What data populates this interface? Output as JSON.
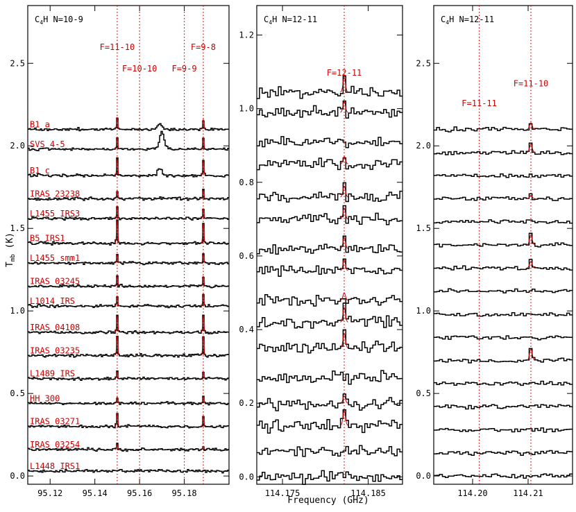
{
  "figure": {
    "ylabel": "T",
    "ylabel_sub": "mb",
    "ylabel_unit": " (K)",
    "xlabel": "Frequency (GHz)"
  },
  "colors": {
    "axis": "#000000",
    "spectra": "#000000",
    "annotation": "#cc0000",
    "fit": "#cc0000"
  },
  "chart_data": [
    {
      "type": "line",
      "title": "C4H N=10-9",
      "title_parts": [
        "C",
        "4",
        "H  N=10-9"
      ],
      "xlim": [
        95.11,
        95.2
      ],
      "ylim": [
        -0.05,
        2.85
      ],
      "x_ticks": [
        "95.12",
        "95.14",
        "95.16",
        "95.18"
      ],
      "x_tick_values": [
        95.12,
        95.14,
        95.16,
        95.18
      ],
      "y_ticks": [
        "0.0",
        "0.5",
        "1.0",
        "1.5",
        "2.0",
        "2.5"
      ],
      "y_tick_values": [
        0.0,
        0.5,
        1.0,
        1.5,
        2.0,
        2.5
      ],
      "transitions": [
        {
          "label": "F=11-10",
          "freq": 95.15,
          "level": 2.58
        },
        {
          "label": "F=10-10",
          "freq": 95.16,
          "level": 2.45
        },
        {
          "label": "F=9-9",
          "freq": 95.18,
          "level": 2.45
        },
        {
          "label": "F=9-8",
          "freq": 95.1885,
          "level": 2.58
        }
      ],
      "series": [
        {
          "name": "B1 a",
          "baseline": 2.1,
          "lines": [
            {
              "x": 95.15,
              "a": 0.07
            },
            {
              "x": 95.169,
              "a": 0.04,
              "broad": true
            },
            {
              "x": 95.1885,
              "a": 0.06
            }
          ]
        },
        {
          "name": "SVS 4-5",
          "baseline": 1.98,
          "lines": [
            {
              "x": 95.15,
              "a": 0.07
            },
            {
              "x": 95.17,
              "a": 0.11,
              "broad": true
            },
            {
              "x": 95.1885,
              "a": 0.07
            }
          ]
        },
        {
          "name": "B1 c",
          "baseline": 1.82,
          "lines": [
            {
              "x": 95.15,
              "a": 0.1
            },
            {
              "x": 95.169,
              "a": 0.04,
              "broad": true
            },
            {
              "x": 95.1885,
              "a": 0.09
            }
          ]
        },
        {
          "name": "IRAS 23238",
          "baseline": 1.68,
          "lines": [
            {
              "x": 95.15,
              "a": 0.05
            },
            {
              "x": 95.1885,
              "a": 0.05
            }
          ]
        },
        {
          "name": "L1455 IRS3",
          "baseline": 1.56,
          "lines": [
            {
              "x": 95.15,
              "a": 0.07
            },
            {
              "x": 95.1885,
              "a": 0.06
            }
          ]
        },
        {
          "name": "B5 IRS1",
          "baseline": 1.41,
          "lines": [
            {
              "x": 95.15,
              "a": 0.14
            },
            {
              "x": 95.1885,
              "a": 0.12
            }
          ]
        },
        {
          "name": "L1455 smm1",
          "baseline": 1.29,
          "lines": [
            {
              "x": 95.15,
              "a": 0.05
            },
            {
              "x": 95.1885,
              "a": 0.05
            }
          ]
        },
        {
          "name": "IRAS 03245",
          "baseline": 1.15,
          "lines": [
            {
              "x": 95.15,
              "a": 0.06
            },
            {
              "x": 95.1885,
              "a": 0.06
            }
          ]
        },
        {
          "name": "L1014 IRS",
          "baseline": 1.03,
          "lines": [
            {
              "x": 95.15,
              "a": 0.06
            },
            {
              "x": 95.1885,
              "a": 0.07
            }
          ]
        },
        {
          "name": "IRAS 04108",
          "baseline": 0.87,
          "lines": [
            {
              "x": 95.15,
              "a": 0.1
            },
            {
              "x": 95.1885,
              "a": 0.1
            }
          ]
        },
        {
          "name": "IRAS 03235",
          "baseline": 0.73,
          "lines": [
            {
              "x": 95.15,
              "a": 0.12
            },
            {
              "x": 95.1885,
              "a": 0.12
            }
          ]
        },
        {
          "name": "L1489 IRS",
          "baseline": 0.59,
          "lines": [
            {
              "x": 95.15,
              "a": 0.04
            },
            {
              "x": 95.1885,
              "a": 0.04
            }
          ]
        },
        {
          "name": "HH 300",
          "baseline": 0.44,
          "lines": [
            {
              "x": 95.15,
              "a": 0.04
            },
            {
              "x": 95.1885,
              "a": 0.04
            }
          ]
        },
        {
          "name": "IRAS 03271",
          "baseline": 0.3,
          "lines": [
            {
              "x": 95.15,
              "a": 0.08
            },
            {
              "x": 95.1885,
              "a": 0.06
            }
          ]
        },
        {
          "name": "IRAS 03254",
          "baseline": 0.16,
          "lines": [
            {
              "x": 95.15,
              "a": 0.03
            },
            {
              "x": 95.1885,
              "a": 0.02
            }
          ]
        },
        {
          "name": "L1448 IRS1",
          "baseline": 0.03,
          "lines": []
        }
      ]
    },
    {
      "type": "line",
      "title": "C4H N=12-11",
      "title_parts": [
        "C",
        "4",
        "H  N=12-11"
      ],
      "xlim": [
        114.172,
        114.189
      ],
      "ylim": [
        -0.02,
        1.28
      ],
      "x_ticks": [
        "114.175",
        "114.185"
      ],
      "x_tick_values": [
        114.175,
        114.185
      ],
      "y_ticks": [
        "0.0",
        "0.2",
        "0.4",
        "0.6",
        "0.8",
        "1.0",
        "1.2"
      ],
      "y_tick_values": [
        0.0,
        0.2,
        0.4,
        0.6,
        0.8,
        1.0,
        1.2
      ],
      "transitions": [
        {
          "label": "F=12-11",
          "freq": 114.1822,
          "level": 1.09
        }
      ],
      "series": [
        {
          "baseline": 1.045,
          "lines": [
            {
              "x": 114.1822,
              "a": 0.04
            }
          ]
        },
        {
          "baseline": 0.99,
          "lines": [
            {
              "x": 114.1822,
              "a": 0.03
            }
          ]
        },
        {
          "baseline": 0.91,
          "lines": []
        },
        {
          "baseline": 0.85,
          "lines": [
            {
              "x": 114.1822,
              "a": 0.02
            }
          ]
        },
        {
          "baseline": 0.76,
          "lines": [
            {
              "x": 114.1822,
              "a": 0.03
            }
          ]
        },
        {
          "baseline": 0.7,
          "lines": [
            {
              "x": 114.1822,
              "a": 0.03
            }
          ]
        },
        {
          "baseline": 0.62,
          "lines": [
            {
              "x": 114.1822,
              "a": 0.03
            }
          ]
        },
        {
          "baseline": 0.56,
          "lines": [
            {
              "x": 114.1822,
              "a": 0.03
            }
          ]
        },
        {
          "baseline": 0.48,
          "lines": [
            {
              "x": 114.1822,
              "a": 0.02
            }
          ]
        },
        {
          "baseline": 0.42,
          "lines": [
            {
              "x": 114.1822,
              "a": 0.04
            }
          ]
        },
        {
          "baseline": 0.35,
          "lines": [
            {
              "x": 114.1822,
              "a": 0.04
            }
          ]
        },
        {
          "baseline": 0.27,
          "lines": []
        },
        {
          "baseline": 0.2,
          "lines": [
            {
              "x": 114.1822,
              "a": 0.02
            }
          ]
        },
        {
          "baseline": 0.14,
          "lines": [
            {
              "x": 114.1822,
              "a": 0.04
            }
          ]
        },
        {
          "baseline": 0.07,
          "lines": []
        },
        {
          "baseline": 0.0,
          "lines": []
        }
      ]
    },
    {
      "type": "line",
      "title": "C4H N=12-11",
      "title_parts": [
        "C",
        "4",
        "H  N=12-11"
      ],
      "xlim": [
        114.193,
        114.218
      ],
      "ylim": [
        -0.05,
        2.85
      ],
      "x_ticks": [
        "114.20",
        "114.21"
      ],
      "x_tick_values": [
        114.2,
        114.21
      ],
      "y_ticks": [
        "0.0",
        "0.5",
        "1.0",
        "1.5",
        "2.0",
        "2.5"
      ],
      "y_tick_values": [
        0.0,
        0.5,
        1.0,
        1.5,
        2.0,
        2.5
      ],
      "transitions": [
        {
          "label": "F=11-11",
          "freq": 114.2012,
          "level": 2.24
        },
        {
          "label": "F=11-10",
          "freq": 114.2105,
          "level": 2.36
        }
      ],
      "series": [
        {
          "baseline": 2.1,
          "lines": [
            {
              "x": 114.2105,
              "a": 0.04
            }
          ]
        },
        {
          "baseline": 1.96,
          "lines": [
            {
              "x": 114.2105,
              "a": 0.05
            }
          ]
        },
        {
          "baseline": 1.82,
          "lines": []
        },
        {
          "baseline": 1.68,
          "lines": [
            {
              "x": 114.2105,
              "a": 0.02
            }
          ]
        },
        {
          "baseline": 1.54,
          "lines": []
        },
        {
          "baseline": 1.4,
          "lines": [
            {
              "x": 114.2105,
              "a": 0.06
            }
          ]
        },
        {
          "baseline": 1.26,
          "lines": [
            {
              "x": 114.2105,
              "a": 0.04
            }
          ]
        },
        {
          "baseline": 1.12,
          "lines": []
        },
        {
          "baseline": 0.98,
          "lines": []
        },
        {
          "baseline": 0.84,
          "lines": []
        },
        {
          "baseline": 0.7,
          "lines": [
            {
              "x": 114.2105,
              "a": 0.07
            }
          ]
        },
        {
          "baseline": 0.56,
          "lines": []
        },
        {
          "baseline": 0.42,
          "lines": []
        },
        {
          "baseline": 0.28,
          "lines": []
        },
        {
          "baseline": 0.14,
          "lines": []
        },
        {
          "baseline": 0.0,
          "lines": []
        }
      ]
    }
  ]
}
